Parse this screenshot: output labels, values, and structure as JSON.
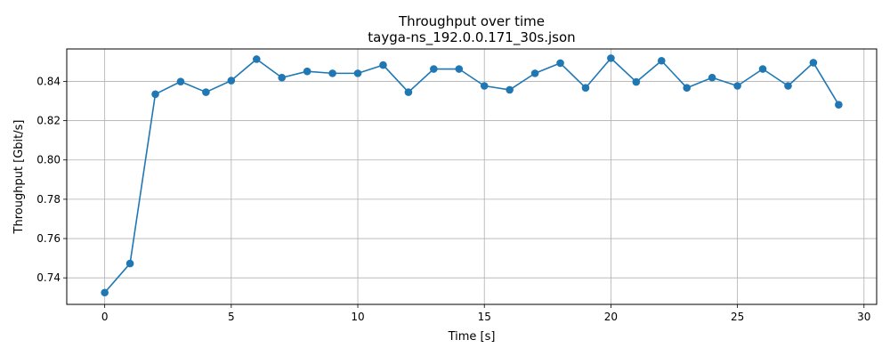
{
  "chart_data": {
    "type": "line",
    "title": "Throughput over time",
    "subtitle": "tayga-ns_192.0.0.171_30s.json",
    "xlabel": "Time [s]",
    "ylabel": "Throughput [Gbit/s]",
    "xlim": [
      -1.5,
      30.5
    ],
    "ylim": [
      0.7265,
      0.8565
    ],
    "x_ticks": [
      0,
      5,
      10,
      15,
      20,
      25,
      30
    ],
    "x_tick_labels": [
      "0",
      "5",
      "10",
      "15",
      "20",
      "25",
      "30"
    ],
    "y_ticks": [
      0.74,
      0.76,
      0.78,
      0.8,
      0.82,
      0.84
    ],
    "y_tick_labels": [
      "0.74",
      "0.76",
      "0.78",
      "0.80",
      "0.82",
      "0.84"
    ],
    "grid": true,
    "series": [
      {
        "marker": "circle",
        "color": "#1f77b4",
        "x": [
          0,
          1,
          2,
          3,
          4,
          5,
          6,
          7,
          8,
          9,
          10,
          11,
          12,
          13,
          14,
          15,
          16,
          17,
          18,
          19,
          20,
          21,
          22,
          23,
          24,
          25,
          26,
          27,
          28,
          29
        ],
        "values": [
          0.7325,
          0.7473,
          0.8335,
          0.8399,
          0.8345,
          0.8404,
          0.8513,
          0.8419,
          0.8451,
          0.8441,
          0.8441,
          0.8483,
          0.8345,
          0.8463,
          0.8463,
          0.8377,
          0.8357,
          0.8441,
          0.8493,
          0.8367,
          0.8518,
          0.8397,
          0.8505,
          0.8367,
          0.8419,
          0.8377,
          0.8463,
          0.8377,
          0.8495,
          0.8281
        ]
      }
    ]
  }
}
